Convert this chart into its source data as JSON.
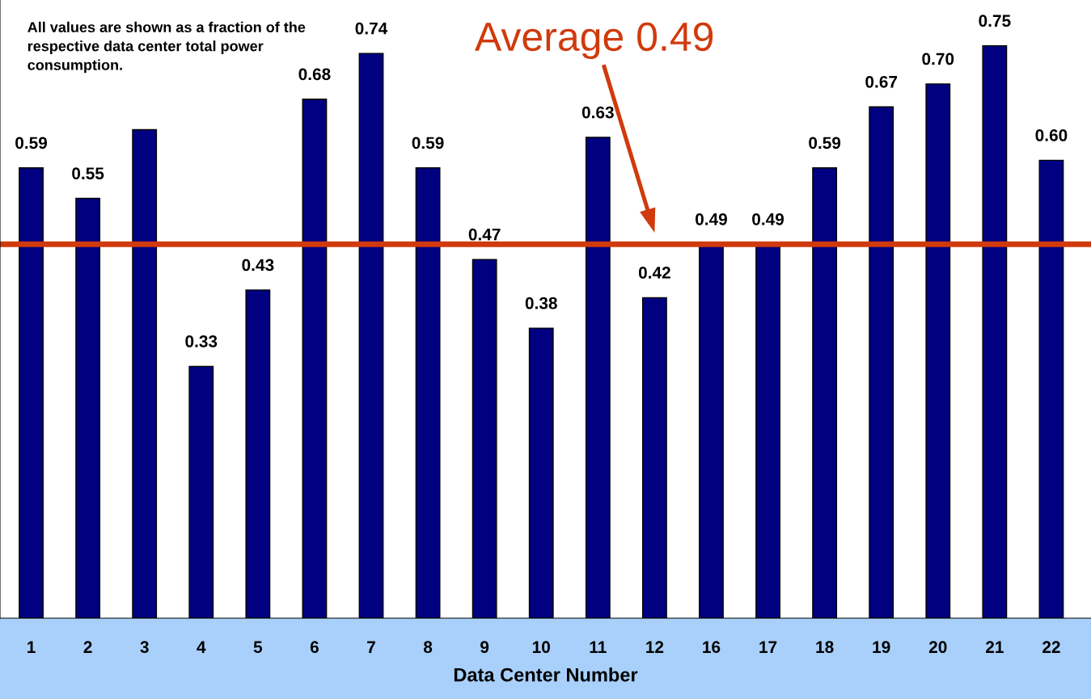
{
  "chart_data": {
    "type": "bar",
    "xlabel": "Data Center Number",
    "categories": [
      "1",
      "2",
      "3",
      "4",
      "5",
      "6",
      "7",
      "8",
      "9",
      "10",
      "11",
      "12",
      "16",
      "17",
      "18",
      "19",
      "20",
      "21",
      "22"
    ],
    "values": [
      0.59,
      0.55,
      0.64,
      0.33,
      0.43,
      0.68,
      0.74,
      0.59,
      0.47,
      0.38,
      0.63,
      0.42,
      0.49,
      0.49,
      0.59,
      0.67,
      0.7,
      0.75,
      0.6
    ],
    "value_labels": [
      "0.59",
      "0.55",
      null,
      "0.33",
      "0.43",
      "0.68",
      "0.74",
      "0.59",
      "0.47",
      "0.38",
      "0.63",
      "0.42",
      "0.49",
      "0.49",
      "0.59",
      "0.67",
      "0.70",
      "0.75",
      "0.60"
    ],
    "color": "#000080",
    "grid": false,
    "ref_lines": [
      {
        "axis": "y",
        "value": 0.49,
        "label": "Average 0.49",
        "color": "#d03a0c"
      }
    ],
    "annotations": [
      "All values are shown as a fraction of the respective data center total power consumption."
    ]
  }
}
